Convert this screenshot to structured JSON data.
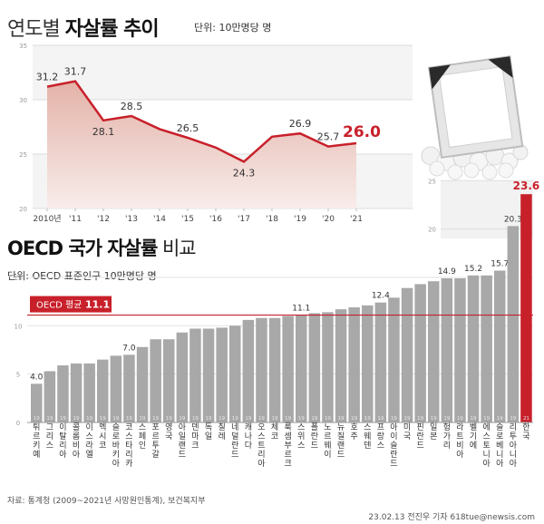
{
  "header": {
    "title_light": "연도별",
    "title_bold": "자살률 추이",
    "unit": "단위: 10만명당 명"
  },
  "section2": {
    "title_bold": "OECD 국가 자살률",
    "title_light": "비교",
    "unit": "단위: OECD 표준인구 10만명당 명"
  },
  "footer": {
    "source": "자료: 통계청 (2009~2021년 사망원인통계), 보건복지부",
    "credit": "23.02.13 전진우 기자 618tue@newsis.com"
  },
  "colors": {
    "accent": "#c8202a",
    "area": "#e8c4bd",
    "bar": "#a8a8a8",
    "last_label": "#c8202a"
  },
  "chart_data": [
    {
      "type": "area",
      "x": [
        "2010년",
        "'11",
        "'12",
        "'13",
        "'14",
        "'15",
        "'16",
        "'17",
        "'18",
        "'19",
        "'20",
        "'21"
      ],
      "values": [
        31.2,
        31.7,
        28.1,
        28.5,
        27.3,
        26.5,
        25.6,
        24.3,
        26.6,
        26.9,
        25.7,
        26.0
      ],
      "labels": [
        "31.2",
        "31.7",
        "28.1",
        "28.5",
        "",
        "26.5",
        "",
        "24.3",
        "",
        "26.9",
        "25.7",
        "26.0"
      ],
      "yticks": [
        20,
        25,
        30,
        35
      ],
      "ylim": [
        20,
        35
      ]
    },
    {
      "type": "bar",
      "categories": [
        "튀르키예",
        "그리스",
        "이탈리아",
        "콜롬비아",
        "이스라엘",
        "멕시코",
        "슬로바키아",
        "코스타리카",
        "스페인",
        "포르투갈",
        "영국",
        "아일랜드",
        "덴마크",
        "독일",
        "칠레",
        "네덜란드",
        "캐나다",
        "오스트리아",
        "체코",
        "룩셈부르크",
        "스위스",
        "폴란드",
        "노르웨이",
        "뉴질랜드",
        "호주",
        "스웨덴",
        "프랑스",
        "아이슬란드",
        "미국",
        "핀란드",
        "일본",
        "헝가리",
        "라트비아",
        "벨기에",
        "에스토니아",
        "슬로베니아",
        "리투아니아",
        "한국"
      ],
      "years": [
        "19",
        "19",
        "19",
        "19",
        "19",
        "19",
        "19",
        "19",
        "19",
        "19",
        "19",
        "19",
        "19",
        "19",
        "19",
        "19",
        "19",
        "19",
        "19",
        "19",
        "19",
        "19",
        "19",
        "19",
        "19",
        "19",
        "19",
        "19",
        "19",
        "19",
        "19",
        "19",
        "19",
        "19",
        "19",
        "19",
        "19",
        "21"
      ],
      "values": [
        4.0,
        5.3,
        5.9,
        6.1,
        6.1,
        6.5,
        6.9,
        7.0,
        7.8,
        8.6,
        8.6,
        9.3,
        9.7,
        9.7,
        9.8,
        10.0,
        10.6,
        10.8,
        10.8,
        11.0,
        11.1,
        11.3,
        11.4,
        11.7,
        11.9,
        12.1,
        12.4,
        12.9,
        13.9,
        14.3,
        14.6,
        14.9,
        14.9,
        15.2,
        15.2,
        15.7,
        20.3,
        23.6
      ],
      "labels": [
        "4.0",
        "",
        "",
        "",
        "",
        "",
        "",
        "7.0",
        "",
        "",
        "",
        "",
        "",
        "",
        "",
        "",
        "",
        "",
        "",
        "",
        "11.1",
        "",
        "",
        "",
        "",
        "",
        "12.4",
        "",
        "",
        "",
        "",
        "14.9",
        "",
        "15.2",
        "",
        "15.7",
        "20.3",
        "23.6"
      ],
      "yticks": [
        0,
        5,
        10,
        15
      ],
      "yticks_upper": [
        20,
        25
      ],
      "ylim": [
        0,
        25
      ],
      "reference": {
        "label": "OECD 평균",
        "value": 11.1,
        "value_label": "11.1"
      }
    }
  ]
}
